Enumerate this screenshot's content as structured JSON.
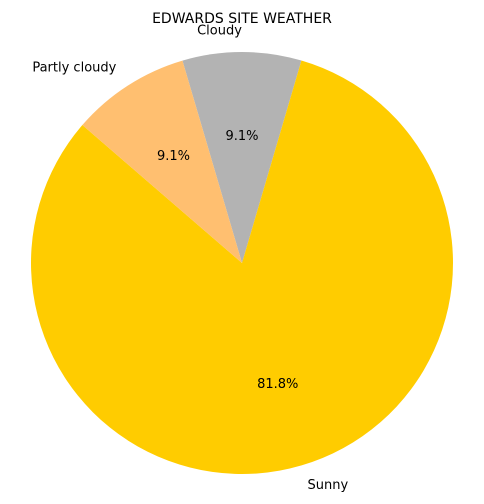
{
  "chart_data": {
    "type": "pie",
    "title": "EDWARDS SITE WEATHER",
    "slices": [
      {
        "label": "Cloudy",
        "value": 9.1,
        "pct_label": "9.1%",
        "color": "#b3b3b3"
      },
      {
        "label": "Sunny",
        "value": 81.8,
        "pct_label": "81.8%",
        "color": "#ffcc00"
      },
      {
        "label": "Partly cloudy",
        "value": 9.1,
        "pct_label": "9.1%",
        "color": "#ffbf70"
      }
    ],
    "start_angle_deg": 106.4,
    "direction": "clockwise",
    "legend": "none"
  }
}
